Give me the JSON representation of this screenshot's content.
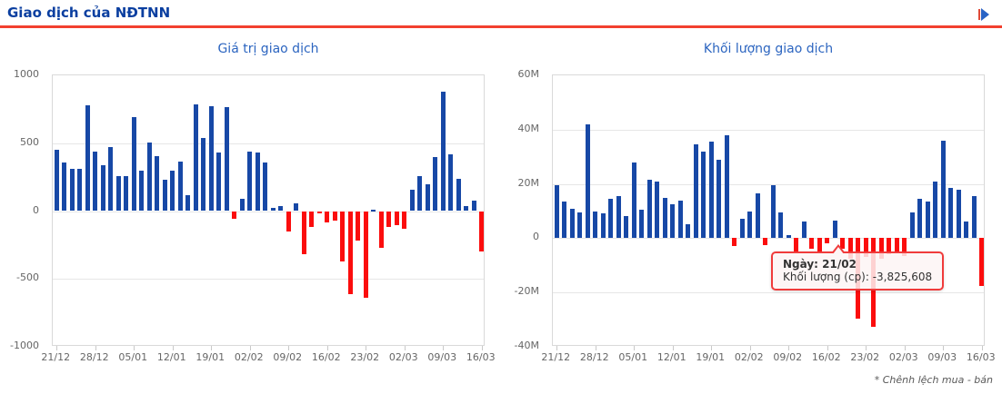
{
  "header": {
    "title": "Giao dịch của NĐTNN",
    "arrow_icon": "arrow-right"
  },
  "footnote": "* Chênh lệch mua - bán",
  "tooltip": {
    "line1": "Ngày: 21/02",
    "line2": "Khối lượng (cp): -3,825,608"
  },
  "colors": {
    "bar_positive": "#1748a6",
    "bar_negative": "#fb0d0d",
    "header_blue": "#0b3fa0",
    "chart_title_blue": "#2c65c0",
    "rule_red": "#f2402e",
    "tooltip_border": "#f03b3b",
    "axis_text": "#666666",
    "gridline": "#e6e6e6"
  },
  "chart_data": [
    {
      "type": "bar",
      "title": "Giá trị giao dịch",
      "ylabels": [
        "1000",
        "500",
        "0",
        "-500",
        "-1000"
      ],
      "ylim": [
        -1000,
        1000
      ],
      "grid": "horizontal",
      "legend": "none",
      "x_ticks": [
        "21/12",
        "28/12",
        "05/01",
        "12/01",
        "19/01",
        "02/02",
        "09/02",
        "16/02",
        "23/02",
        "02/03",
        "09/03",
        "16/03"
      ],
      "values": [
        450,
        360,
        310,
        310,
        780,
        435,
        335,
        470,
        255,
        255,
        690,
        295,
        505,
        405,
        230,
        300,
        365,
        115,
        785,
        540,
        770,
        430,
        765,
        -55,
        90,
        435,
        430,
        355,
        25,
        40,
        -150,
        55,
        -315,
        -115,
        -20,
        -85,
        -70,
        -370,
        -610,
        -215,
        -640,
        10,
        -270,
        -115,
        -105,
        -130,
        160,
        260,
        195,
        400,
        880,
        415,
        235,
        35,
        80,
        -300
      ]
    },
    {
      "type": "bar",
      "title": "Khối lượng giao dịch",
      "ylabels": [
        "60M",
        "40M",
        "20M",
        "0",
        "-20M",
        "-40M"
      ],
      "ylim": [
        -40,
        60
      ],
      "unit": "million shares",
      "grid": "horizontal",
      "legend": "none",
      "x_ticks": [
        "21/12",
        "28/12",
        "05/01",
        "12/01",
        "19/01",
        "02/02",
        "09/02",
        "16/02",
        "23/02",
        "02/03",
        "09/03",
        "16/03"
      ],
      "values": [
        19.5,
        13.5,
        11,
        9.5,
        42,
        10,
        9,
        14.5,
        15.5,
        8,
        28,
        10.5,
        21.5,
        21,
        15,
        12.5,
        14,
        5,
        34.5,
        32,
        35.5,
        29,
        38,
        -3,
        7,
        10,
        16.5,
        -2.7,
        19.5,
        9.5,
        1,
        -5,
        6,
        -4,
        -5.5,
        -2,
        6.5,
        -3.8,
        -7.5,
        -29.5,
        -7,
        -32.5,
        -7.5,
        -6,
        -5.5,
        -6.5,
        9.5,
        14.5,
        13.5,
        21,
        36,
        18.5,
        18,
        6,
        15.5,
        -17.5
      ],
      "hovered_point": {
        "index": 37,
        "date": "21/02",
        "volume": "-3,825,608"
      }
    }
  ]
}
